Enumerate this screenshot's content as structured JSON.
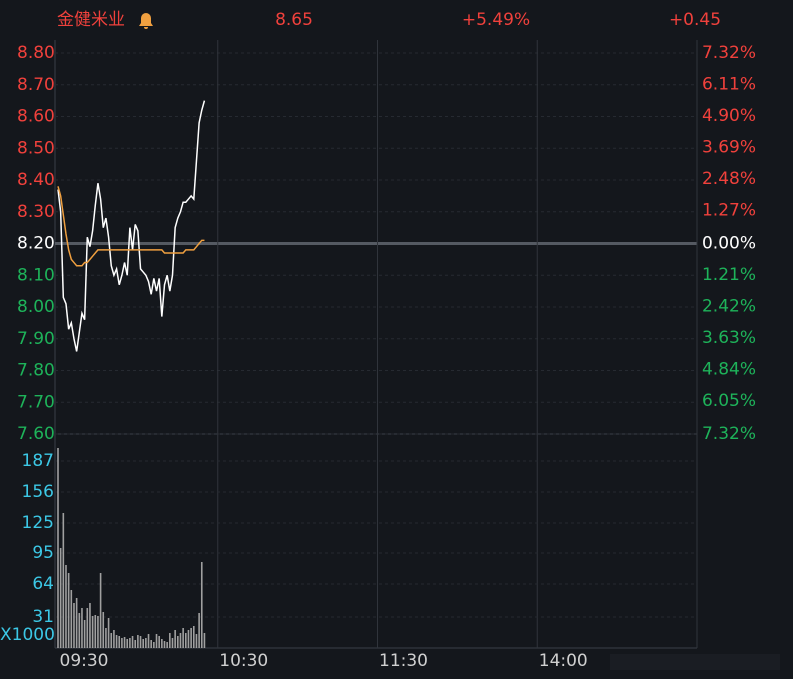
{
  "header": {
    "name": "金健米业",
    "price": "8.65",
    "change_pct": "+5.49%",
    "change": "+0.45"
  },
  "chart_data": {
    "type": "intraday",
    "up_color": "#f0413c",
    "down_color": "#1eb35a",
    "flat_color": "#ffffff",
    "volume_label_color": "#3cc8e6",
    "xlim": [
      0,
      240
    ],
    "xticks": [
      {
        "value": 0,
        "label": "09:30"
      },
      {
        "value": 60,
        "label": "10:30"
      },
      {
        "value": 120,
        "label": "11:30"
      },
      {
        "value": 180,
        "label": "14:00"
      }
    ],
    "ylim": [
      7.6,
      8.8
    ],
    "yticks": [
      {
        "value": 8.8,
        "label": "8.80"
      },
      {
        "value": 8.7,
        "label": "8.70"
      },
      {
        "value": 8.6,
        "label": "8.60"
      },
      {
        "value": 8.5,
        "label": "8.50"
      },
      {
        "value": 8.4,
        "label": "8.40"
      },
      {
        "value": 8.3,
        "label": "8.30"
      },
      {
        "value": 8.2,
        "label": "8.20"
      },
      {
        "value": 8.1,
        "label": "8.10"
      },
      {
        "value": 8.0,
        "label": "8.00"
      },
      {
        "value": 7.9,
        "label": "7.90"
      },
      {
        "value": 7.8,
        "label": "7.80"
      },
      {
        "value": 7.7,
        "label": "7.70"
      },
      {
        "value": 7.6,
        "label": "7.60"
      }
    ],
    "y2lim": [
      -7.32,
      7.32
    ],
    "y2ticks": [
      {
        "value": 7.32,
        "label": "7.32%"
      },
      {
        "value": 6.11,
        "label": "6.11%"
      },
      {
        "value": 4.9,
        "label": "4.90%"
      },
      {
        "value": 3.69,
        "label": "3.69%"
      },
      {
        "value": 2.48,
        "label": "2.48%"
      },
      {
        "value": 1.27,
        "label": "1.27%"
      },
      {
        "value": 0,
        "label": "0.00%"
      },
      {
        "value": -1.21,
        "label": "1.21%"
      },
      {
        "value": -2.42,
        "label": "2.42%"
      },
      {
        "value": -3.63,
        "label": "3.63%"
      },
      {
        "value": -4.84,
        "label": "4.84%"
      },
      {
        "value": -6.05,
        "label": "6.05%"
      },
      {
        "value": -7.32,
        "label": "7.32%"
      }
    ],
    "series": [
      {
        "name": "price",
        "color": "#ffffff",
        "values": [
          8.37,
          8.3,
          8.03,
          8.01,
          7.93,
          7.95,
          7.9,
          7.86,
          7.92,
          7.98,
          7.96,
          8.22,
          8.19,
          8.24,
          8.32,
          8.39,
          8.34,
          8.25,
          8.28,
          8.22,
          8.13,
          8.1,
          8.12,
          8.07,
          8.1,
          8.14,
          8.1,
          8.25,
          8.18,
          8.26,
          8.24,
          8.12,
          8.11,
          8.1,
          8.08,
          8.04,
          8.09,
          8.05,
          8.09,
          7.97,
          8.07,
          8.1,
          8.05,
          8.1,
          8.25,
          8.28,
          8.3,
          8.33,
          8.33,
          8.34,
          8.35,
          8.34,
          8.46,
          8.58,
          8.62,
          8.65
        ]
      },
      {
        "name": "average",
        "color": "#f0a040",
        "values": [
          8.38,
          8.35,
          8.29,
          8.23,
          8.18,
          8.15,
          8.14,
          8.13,
          8.13,
          8.13,
          8.14,
          8.14,
          8.15,
          8.16,
          8.17,
          8.18,
          8.18,
          8.18,
          8.18,
          8.18,
          8.18,
          8.18,
          8.18,
          8.18,
          8.18,
          8.18,
          8.18,
          8.18,
          8.18,
          8.18,
          8.18,
          8.18,
          8.18,
          8.18,
          8.18,
          8.18,
          8.18,
          8.18,
          8.18,
          8.18,
          8.17,
          8.17,
          8.17,
          8.17,
          8.17,
          8.17,
          8.17,
          8.17,
          8.18,
          8.18,
          8.18,
          8.18,
          8.19,
          8.2,
          8.21,
          8.21
        ]
      }
    ],
    "volume": {
      "unit": "X1000",
      "color": "#a0a0a0",
      "vlim": [
        0,
        214
      ],
      "ticks": [
        187,
        156,
        125,
        95,
        64,
        31
      ],
      "values": [
        200,
        100,
        135,
        83,
        75,
        58,
        45,
        50,
        35,
        40,
        28,
        40,
        45,
        32,
        33,
        32,
        75,
        36,
        20,
        30,
        15,
        18,
        13,
        12,
        10,
        11,
        9,
        10,
        12,
        8,
        13,
        12,
        9,
        10,
        14,
        8,
        6,
        14,
        12,
        9,
        7,
        6,
        15,
        10,
        18,
        12,
        15,
        20,
        15,
        18,
        20,
        22,
        14,
        35,
        86,
        15
      ]
    }
  }
}
